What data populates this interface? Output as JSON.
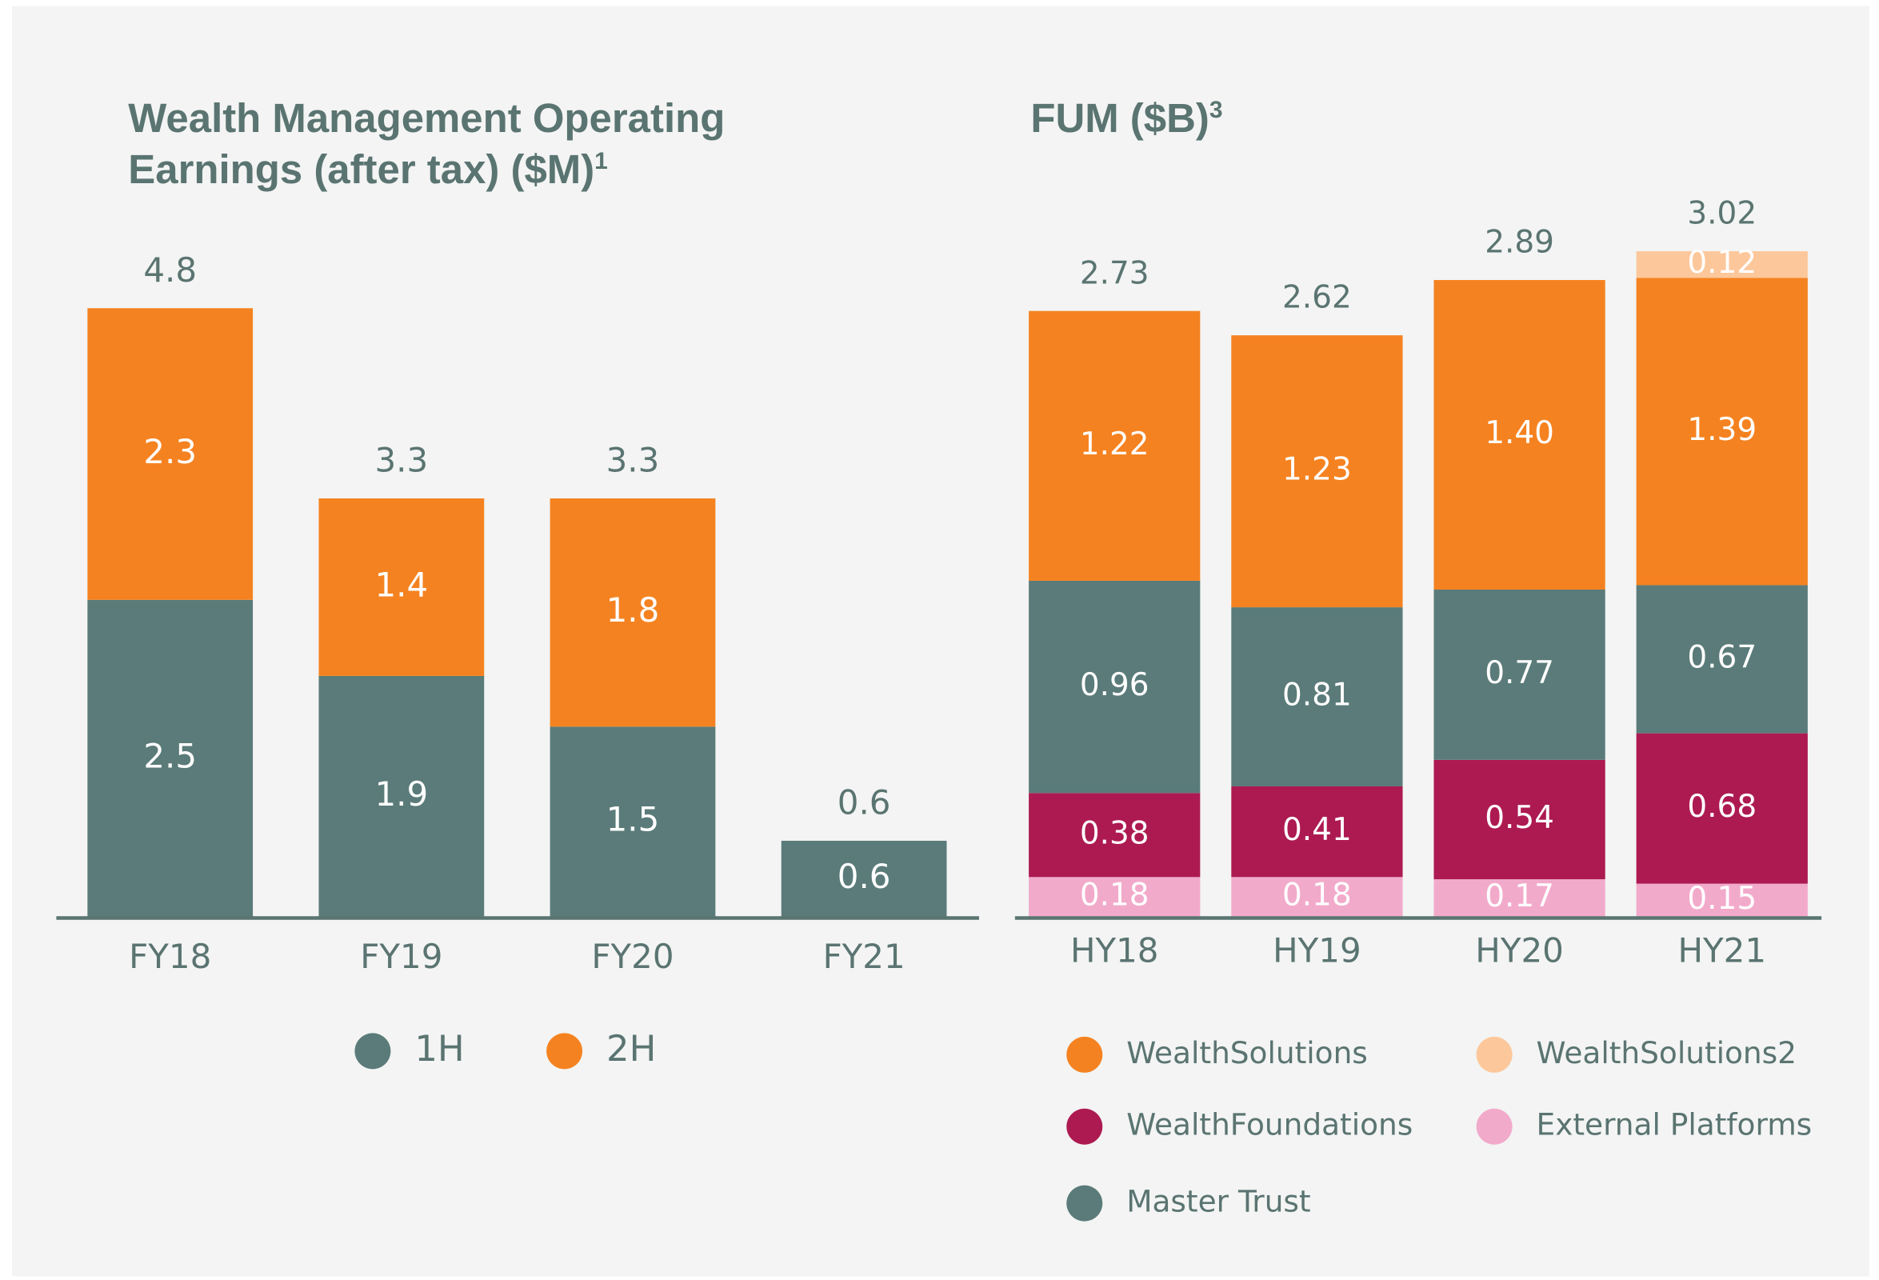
{
  "chart_data": [
    {
      "type": "stacked-bar",
      "title_lines": [
        "Wealth Management Operating",
        "Earnings (after tax) ($M)"
      ],
      "title_note": "1",
      "categories": [
        "FY18",
        "FY19",
        "FY20",
        "FY21"
      ],
      "series": [
        {
          "name": "1H",
          "color": "#5a7b79",
          "values": [
            2.5,
            1.9,
            1.5,
            0.6
          ]
        },
        {
          "name": "2H",
          "color": "#f58220",
          "values": [
            2.3,
            1.4,
            1.8,
            null
          ]
        }
      ],
      "totals": [
        4.8,
        3.3,
        3.3,
        0.6
      ]
    },
    {
      "type": "stacked-bar",
      "title_lines": [
        "FUM ($B)"
      ],
      "title_note": "3",
      "categories": [
        "HY18",
        "HY19",
        "HY20",
        "HY21"
      ],
      "series": [
        {
          "name": "External Platforms",
          "color": "#f2aacb",
          "values": [
            0.18,
            0.18,
            0.17,
            0.15
          ]
        },
        {
          "name": "WealthFoundations",
          "color": "#ad1a52",
          "values": [
            0.38,
            0.41,
            0.54,
            0.68
          ]
        },
        {
          "name": "Master Trust",
          "color": "#5a7b79",
          "values": [
            0.96,
            0.81,
            0.77,
            0.67
          ]
        },
        {
          "name": "WealthSolutions",
          "color": "#f58220",
          "values": [
            1.22,
            1.23,
            1.4,
            1.39
          ],
          "value_labels": [
            "1.22",
            "1.23",
            "1.40",
            "1.39"
          ]
        },
        {
          "name": "WealthSolutions2",
          "color": "#fcc79a",
          "values": [
            null,
            null,
            null,
            0.12
          ]
        }
      ],
      "totals": [
        2.73,
        2.62,
        2.89,
        3.02
      ]
    }
  ]
}
